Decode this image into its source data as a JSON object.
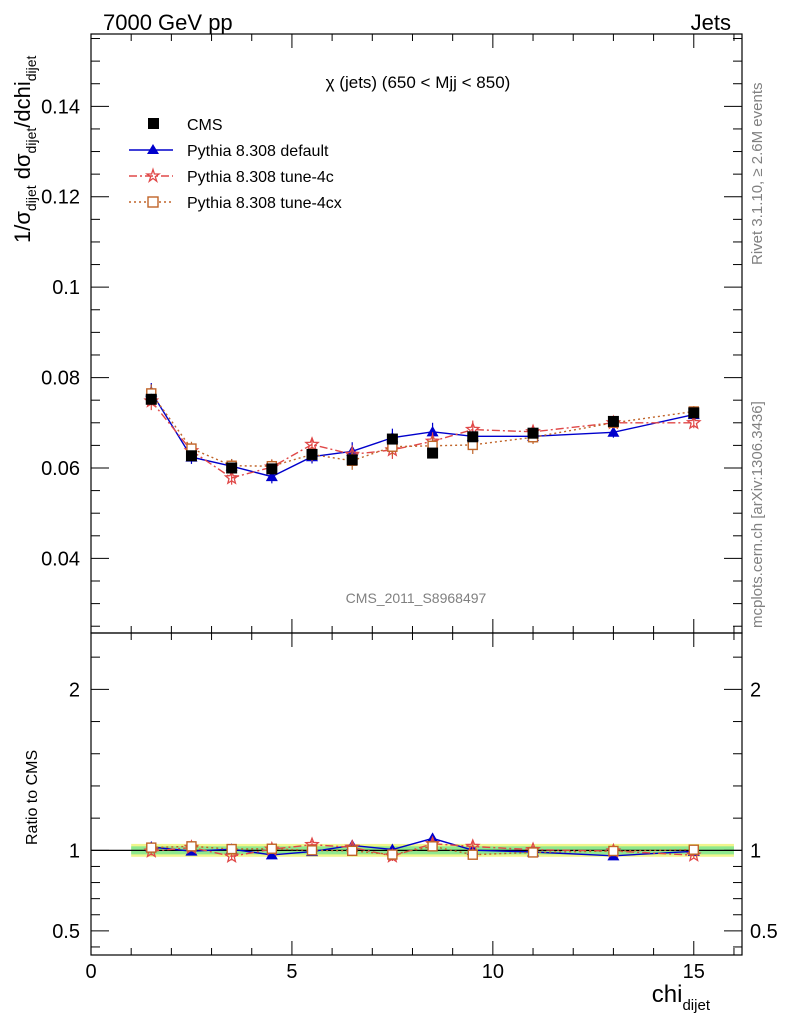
{
  "header": {
    "left": "7000 GeV pp",
    "right": "Jets"
  },
  "side_labels": {
    "rivet": "Rivet 3.1.10, ≥ 2.6M events",
    "mcplots": "mcplots.cern.ch [arXiv:1306.3436]"
  },
  "chart_data": [
    {
      "type": "scatter",
      "title": "χ (jets) (650 < Mjj <  850)",
      "watermark": "CMS_2011_S8968497",
      "ylabel": "1/σdijet dσdijet/dchidijet",
      "ylabel_parts": {
        "a": "1/σ",
        "b": "dijet",
        "c": " dσ",
        "d": "dijet",
        "e": "/dchi",
        "f": "dijet"
      },
      "xlabel": "chidijet",
      "xlabel_parts": {
        "main": "chi",
        "sub": "dijet"
      },
      "xlim": [
        0,
        16.2
      ],
      "ylim": [
        0.0235,
        0.156
      ],
      "x_ticks": [
        "0",
        "5",
        "10",
        "15"
      ],
      "y_ticks": [
        "0.04",
        "0.06",
        "0.08",
        "0.1",
        "0.12",
        "0.14"
      ],
      "y_tick_values": [
        0.04,
        0.06,
        0.08,
        0.1,
        0.12,
        0.14
      ],
      "legend_position": "top-left",
      "series": [
        {
          "name": "CMS",
          "color": "#000000",
          "marker": "square",
          "x": [
            1.5,
            2.5,
            3.5,
            4.5,
            5.5,
            6.5,
            7.5,
            8.5,
            9.5,
            11,
            13,
            15
          ],
          "y": [
            0.0752,
            0.0627,
            0.06,
            0.0598,
            0.063,
            0.0618,
            0.0664,
            0.0633,
            0.0669,
            0.0677,
            0.0703,
            0.0722
          ],
          "err": [
            0.0012,
            0.001,
            0.0009,
            0.0009,
            0.001,
            0.001,
            0.001,
            0.0008,
            0.001,
            0.001,
            0.0008,
            0.0009
          ]
        },
        {
          "name": "Pythia 8.308 default",
          "color": "#0000cc",
          "marker": "triangle",
          "dash": "",
          "x": [
            1.5,
            2.5,
            3.5,
            4.5,
            5.5,
            6.5,
            7.5,
            8.5,
            9.5,
            11,
            13,
            15
          ],
          "y": [
            0.0768,
            0.0624,
            0.0604,
            0.0581,
            0.0625,
            0.0637,
            0.0667,
            0.068,
            0.067,
            0.067,
            0.0679,
            0.0718
          ],
          "err": [
            0.002,
            0.0015,
            0.0015,
            0.0015,
            0.0015,
            0.002,
            0.002,
            0.002,
            0.0015,
            0.0012,
            0.0012,
            0.0012
          ]
        },
        {
          "name": "Pythia 8.308 tune-4c",
          "color": "#e04848",
          "marker": "star",
          "dash": "8,3,2,3",
          "x": [
            1.5,
            2.5,
            3.5,
            4.5,
            5.5,
            6.5,
            7.5,
            8.5,
            9.5,
            11,
            13,
            15
          ],
          "y": [
            0.0748,
            0.0638,
            0.0578,
            0.0602,
            0.0652,
            0.063,
            0.064,
            0.0659,
            0.0685,
            0.068,
            0.07,
            0.07
          ],
          "err": [
            0.002,
            0.0015,
            0.0015,
            0.0015,
            0.0015,
            0.002,
            0.002,
            0.002,
            0.002,
            0.0015,
            0.0012,
            0.0012
          ]
        },
        {
          "name": "Pythia 8.308 tune-4cx",
          "color": "#c06428",
          "marker": "open-square",
          "dash": "2,3",
          "x": [
            1.5,
            2.5,
            3.5,
            4.5,
            5.5,
            6.5,
            7.5,
            8.5,
            9.5,
            11,
            13,
            15
          ],
          "y": [
            0.0765,
            0.0643,
            0.0605,
            0.0604,
            0.063,
            0.0616,
            0.0647,
            0.0649,
            0.0651,
            0.0668,
            0.07,
            0.0725
          ],
          "err": [
            0.002,
            0.0015,
            0.0015,
            0.0015,
            0.0015,
            0.002,
            0.002,
            0.002,
            0.002,
            0.0015,
            0.0012,
            0.0012
          ]
        }
      ]
    },
    {
      "type": "scatter",
      "ylabel": "Ratio to CMS",
      "xlim": [
        0,
        16.2
      ],
      "ylim": [
        0.35,
        2.35
      ],
      "y_ticks": [
        "0.5",
        "1",
        "2"
      ],
      "y_tick_values": [
        0.5,
        1,
        2
      ],
      "band": {
        "x_from": 1.0,
        "x_to": 16.0,
        "inner_halfwidth": 0.025,
        "outer_halfwidth": 0.04,
        "inner_color": "#8ee88e",
        "outer_color": "#f0f58c"
      },
      "reference_line": 1,
      "ratio_series": [
        {
          "name": "Pythia 8.308 default",
          "y": [
            1.021,
            0.995,
            1.007,
            0.972,
            0.992,
            1.031,
            1.005,
            1.074,
            1.001,
            0.99,
            0.966,
            0.994
          ]
        },
        {
          "name": "Pythia 8.308 tune-4c",
          "y": [
            0.995,
            1.018,
            0.963,
            1.007,
            1.035,
            1.019,
            0.964,
            1.041,
            1.024,
            1.004,
            0.996,
            0.97
          ]
        },
        {
          "name": "Pythia 8.308 tune-4cx",
          "y": [
            1.017,
            1.025,
            1.008,
            1.01,
            1.0,
            0.997,
            0.974,
            1.025,
            0.973,
            0.987,
            0.996,
            1.004
          ]
        }
      ]
    }
  ]
}
